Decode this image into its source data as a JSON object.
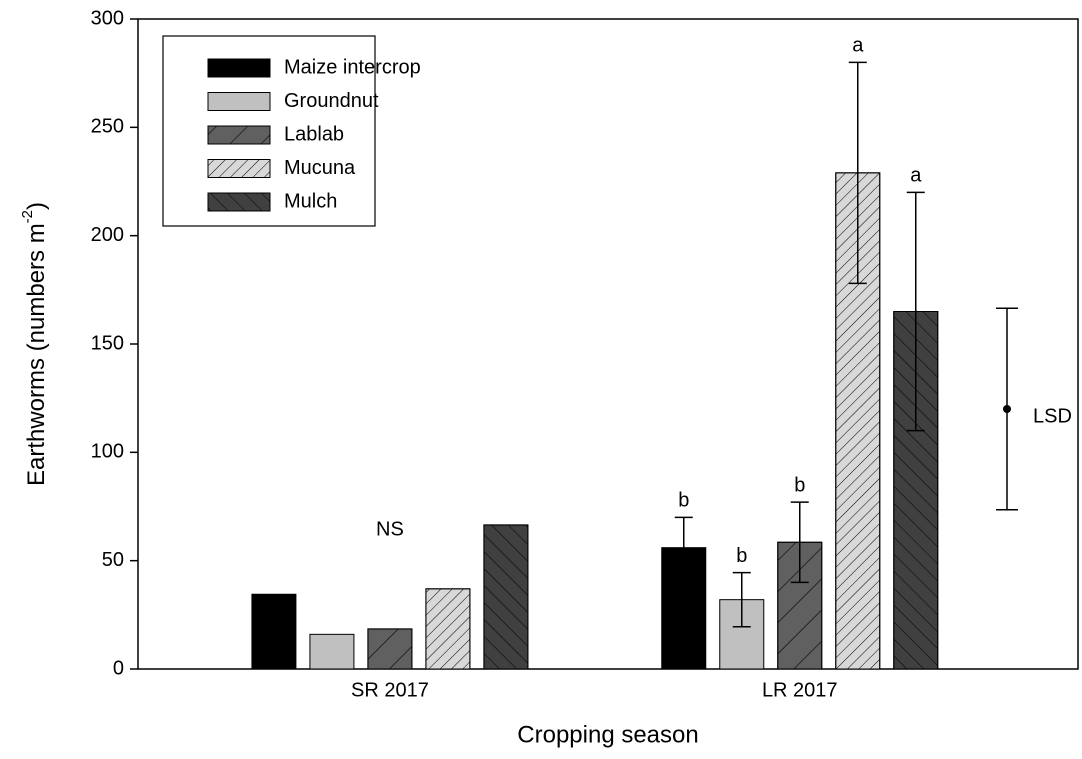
{
  "chart_data": {
    "type": "bar",
    "xlabel": "Cropping season",
    "ylabel": {
      "text": "Earthworms (numbers m",
      "sup": "-2",
      "tail": ")"
    },
    "categories": [
      "SR 2017",
      "LR 2017"
    ],
    "ylim": [
      0,
      300
    ],
    "yticks": [
      0,
      50,
      100,
      150,
      200,
      250,
      300
    ],
    "series": [
      {
        "name": "Maize intercrop",
        "color": "#000000",
        "pattern": "solid",
        "values": [
          34.5,
          56
        ],
        "errors": [
          null,
          14
        ],
        "letters": [
          null,
          "b"
        ]
      },
      {
        "name": "Groundnut",
        "color": "#c0c0c0",
        "pattern": "solid",
        "values": [
          16,
          32
        ],
        "errors": [
          null,
          12.5
        ],
        "letters": [
          null,
          "b"
        ]
      },
      {
        "name": "Lablab",
        "color": "#606060",
        "pattern": "sparse-forward",
        "values": [
          18.5,
          58.5
        ],
        "errors": [
          null,
          18.5
        ],
        "letters": [
          null,
          "b"
        ]
      },
      {
        "name": "Mucuna",
        "color": "#d8d8d8",
        "pattern": "dense-forward",
        "values": [
          37,
          229
        ],
        "errors": [
          null,
          51
        ],
        "letters": [
          null,
          "a"
        ]
      },
      {
        "name": "Mulch",
        "color": "#404040",
        "pattern": "backward",
        "values": [
          66.5,
          165
        ],
        "errors": [
          null,
          55
        ],
        "letters": [
          null,
          "a"
        ]
      }
    ],
    "annotations": [
      {
        "text": "NS",
        "category": 0,
        "y": 64
      }
    ],
    "lsd": {
      "label": "LSD",
      "center": 120,
      "half_width": 46.5
    },
    "legend": "upper-left"
  }
}
